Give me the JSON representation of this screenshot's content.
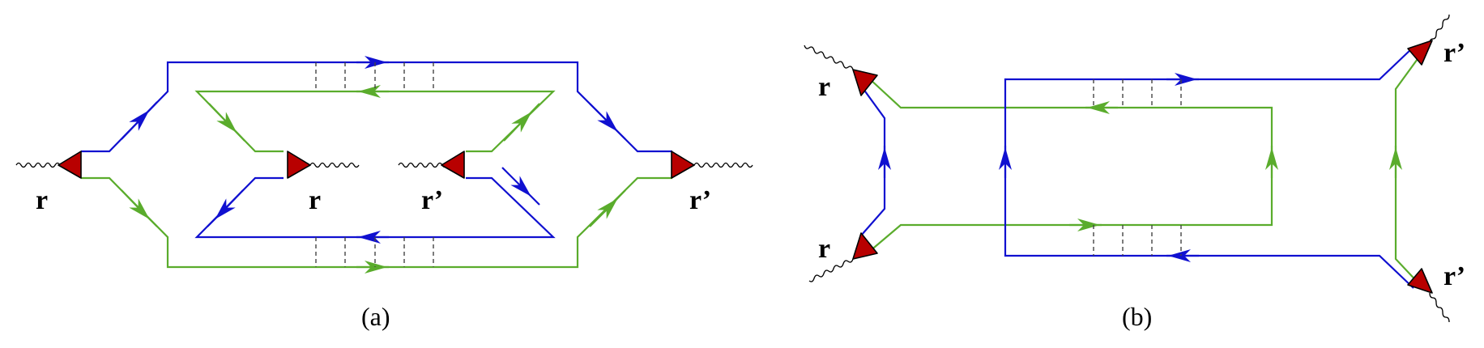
{
  "colors": {
    "propagator_a": "#1010d0",
    "propagator_b": "#5aac2c",
    "vertex_fill": "#b80000"
  },
  "panel_a": {
    "caption": "(a)",
    "labels": {
      "left_outer": "r",
      "inner_left": "r",
      "inner_right": "r’",
      "right_outer": "r’"
    }
  },
  "panel_b": {
    "caption": "(b)",
    "labels": {
      "top_left": "r",
      "bottom_left": "r",
      "top_right": "r’",
      "bottom_right": "r’"
    }
  }
}
